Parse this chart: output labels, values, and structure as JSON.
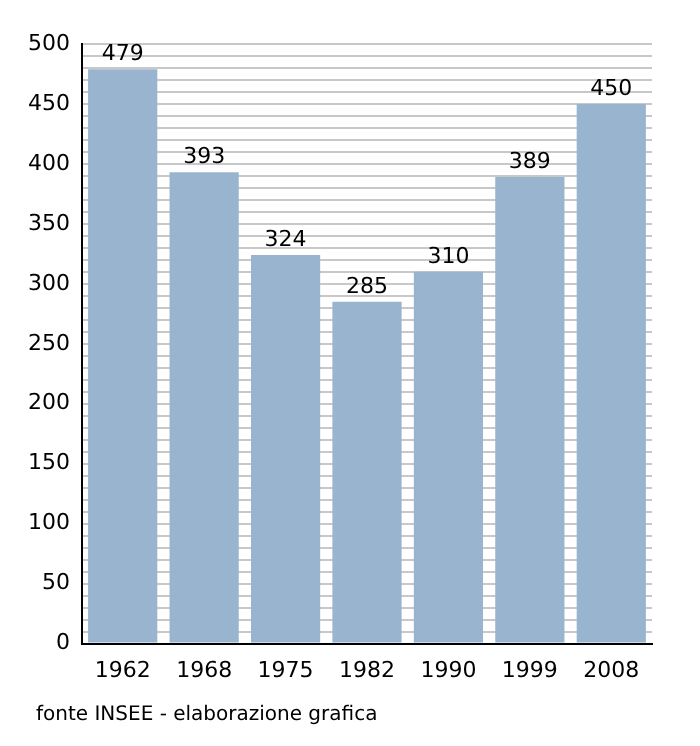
{
  "chart_data": {
    "type": "bar",
    "categories": [
      "1962",
      "1968",
      "1975",
      "1982",
      "1990",
      "1999",
      "2008"
    ],
    "values": [
      479,
      393,
      324,
      285,
      310,
      389,
      450
    ],
    "color": "#98b4cf",
    "data_labels": true,
    "grid": "y",
    "legend": false,
    "ylim": [
      0,
      500
    ],
    "yticks": [
      0,
      {
        "value": 10,
        "label": null
      },
      {
        "value": 20,
        "label": null
      },
      {
        "value": 30,
        "label": null
      },
      {
        "value": 40,
        "label": null
      },
      50,
      {
        "value": 60,
        "label": null
      },
      {
        "value": 70,
        "label": null
      },
      {
        "value": 80,
        "label": null
      },
      {
        "value": 90,
        "label": null
      },
      100,
      {
        "value": 110,
        "label": null
      },
      {
        "value": 120,
        "label": null
      },
      {
        "value": 130,
        "label": null
      },
      {
        "value": 140,
        "label": null
      },
      150,
      {
        "value": 160,
        "label": null
      },
      {
        "value": 170,
        "label": null
      },
      {
        "value": 180,
        "label": null
      },
      {
        "value": 190,
        "label": null
      },
      200,
      {
        "value": 210,
        "label": null
      },
      {
        "value": 220,
        "label": null
      },
      {
        "value": 230,
        "label": null
      },
      {
        "value": 240,
        "label": null
      },
      250,
      {
        "value": 260,
        "label": null
      },
      {
        "value": 270,
        "label": null
      },
      {
        "value": 280,
        "label": null
      },
      {
        "value": 290,
        "label": null
      },
      300,
      {
        "value": 310,
        "label": null
      },
      {
        "value": 320,
        "label": null
      },
      {
        "value": 330,
        "label": null
      },
      {
        "value": 340,
        "label": null
      },
      350,
      {
        "value": 360,
        "label": null
      },
      {
        "value": 370,
        "label": null
      },
      {
        "value": 380,
        "label": null
      },
      {
        "value": 390,
        "label": null
      },
      400,
      {
        "value": 410,
        "label": null
      },
      {
        "value": 420,
        "label": null
      },
      {
        "value": 430,
        "label": null
      },
      {
        "value": 440,
        "label": null
      },
      450,
      {
        "value": 460,
        "label": null
      },
      {
        "value": 470,
        "label": null
      },
      {
        "value": 480,
        "label": null
      },
      {
        "value": 490,
        "label": null
      },
      500
    ],
    "annotations": [
      "fonte INSEE - elaborazione grafica"
    ]
  }
}
